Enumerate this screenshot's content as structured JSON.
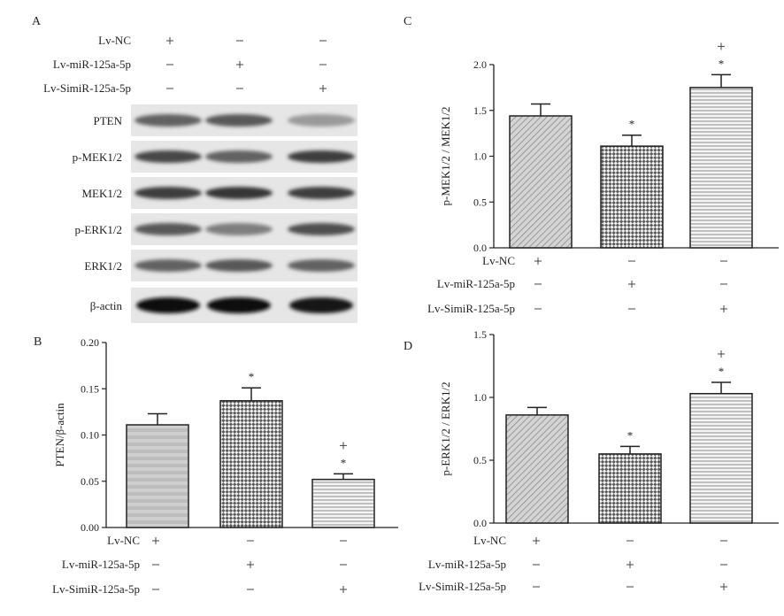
{
  "figure": {
    "panel_labels": [
      "A",
      "B",
      "C",
      "D"
    ]
  },
  "groups": [
    "Lv-NC",
    "Lv-miR-125a-5p",
    "Lv-SimiR-125a-5p"
  ],
  "conditions": [
    [
      "+",
      "—",
      "—"
    ],
    [
      "—",
      "+",
      "—"
    ],
    [
      "—",
      "—",
      "+"
    ]
  ],
  "blot": {
    "bands": [
      "PTEN",
      "p-MEK1/2",
      "MEK1/2",
      "p-ERK1/2",
      "ERK1/2",
      "β-actin"
    ],
    "intensity": [
      [
        0.55,
        0.6,
        0.25
      ],
      [
        0.7,
        0.55,
        0.75
      ],
      [
        0.75,
        0.8,
        0.75
      ],
      [
        0.6,
        0.4,
        0.65
      ],
      [
        0.55,
        0.6,
        0.55
      ],
      [
        1.0,
        1.0,
        0.95
      ]
    ]
  },
  "chart_data": [
    {
      "panel": "B",
      "type": "bar",
      "categories": [
        "Lv-NC",
        "Lv-miR-125a-5p",
        "Lv-SimiR-125a-5p"
      ],
      "values": [
        0.111,
        0.137,
        0.052
      ],
      "errors": [
        0.012,
        0.014,
        0.006
      ],
      "ylabel": "PTEN/β-actin",
      "ylim": [
        0,
        0.2
      ],
      "yticks": [
        "0.00",
        "0.05",
        "0.10",
        "0.15",
        "0.20"
      ],
      "annotations": [
        [],
        [
          "*"
        ],
        [
          "+",
          "*"
        ]
      ],
      "patterns": [
        "gray",
        "checker",
        "hstripe"
      ]
    },
    {
      "panel": "C",
      "type": "bar",
      "categories": [
        "Lv-NC",
        "Lv-miR-125a-5p",
        "Lv-SimiR-125a-5p"
      ],
      "values": [
        1.44,
        1.11,
        1.75
      ],
      "errors": [
        0.13,
        0.12,
        0.14
      ],
      "ylabel": "p-MEK1/2 / MEK1/2",
      "ylim": [
        0,
        2.0
      ],
      "yticks": [
        "0.0",
        "0.5",
        "1.0",
        "1.5",
        "2.0"
      ],
      "annotations": [
        [],
        [
          "*"
        ],
        [
          "+",
          "*"
        ]
      ],
      "patterns": [
        "diag",
        "checker",
        "hstripe"
      ]
    },
    {
      "panel": "D",
      "type": "bar",
      "categories": [
        "Lv-NC",
        "Lv-miR-125a-5p",
        "Lv-SimiR-125a-5p"
      ],
      "values": [
        0.86,
        0.55,
        1.03
      ],
      "errors": [
        0.06,
        0.06,
        0.09
      ],
      "ylabel": "p-ERK1/2 / ERK1/2",
      "ylim": [
        0,
        1.5
      ],
      "yticks": [
        "0.0",
        "0.5",
        "1.0",
        "1.5"
      ],
      "annotations": [
        [],
        [
          "*"
        ],
        [
          "+",
          "*"
        ]
      ],
      "patterns": [
        "diag",
        "checker",
        "hstripe"
      ]
    }
  ]
}
